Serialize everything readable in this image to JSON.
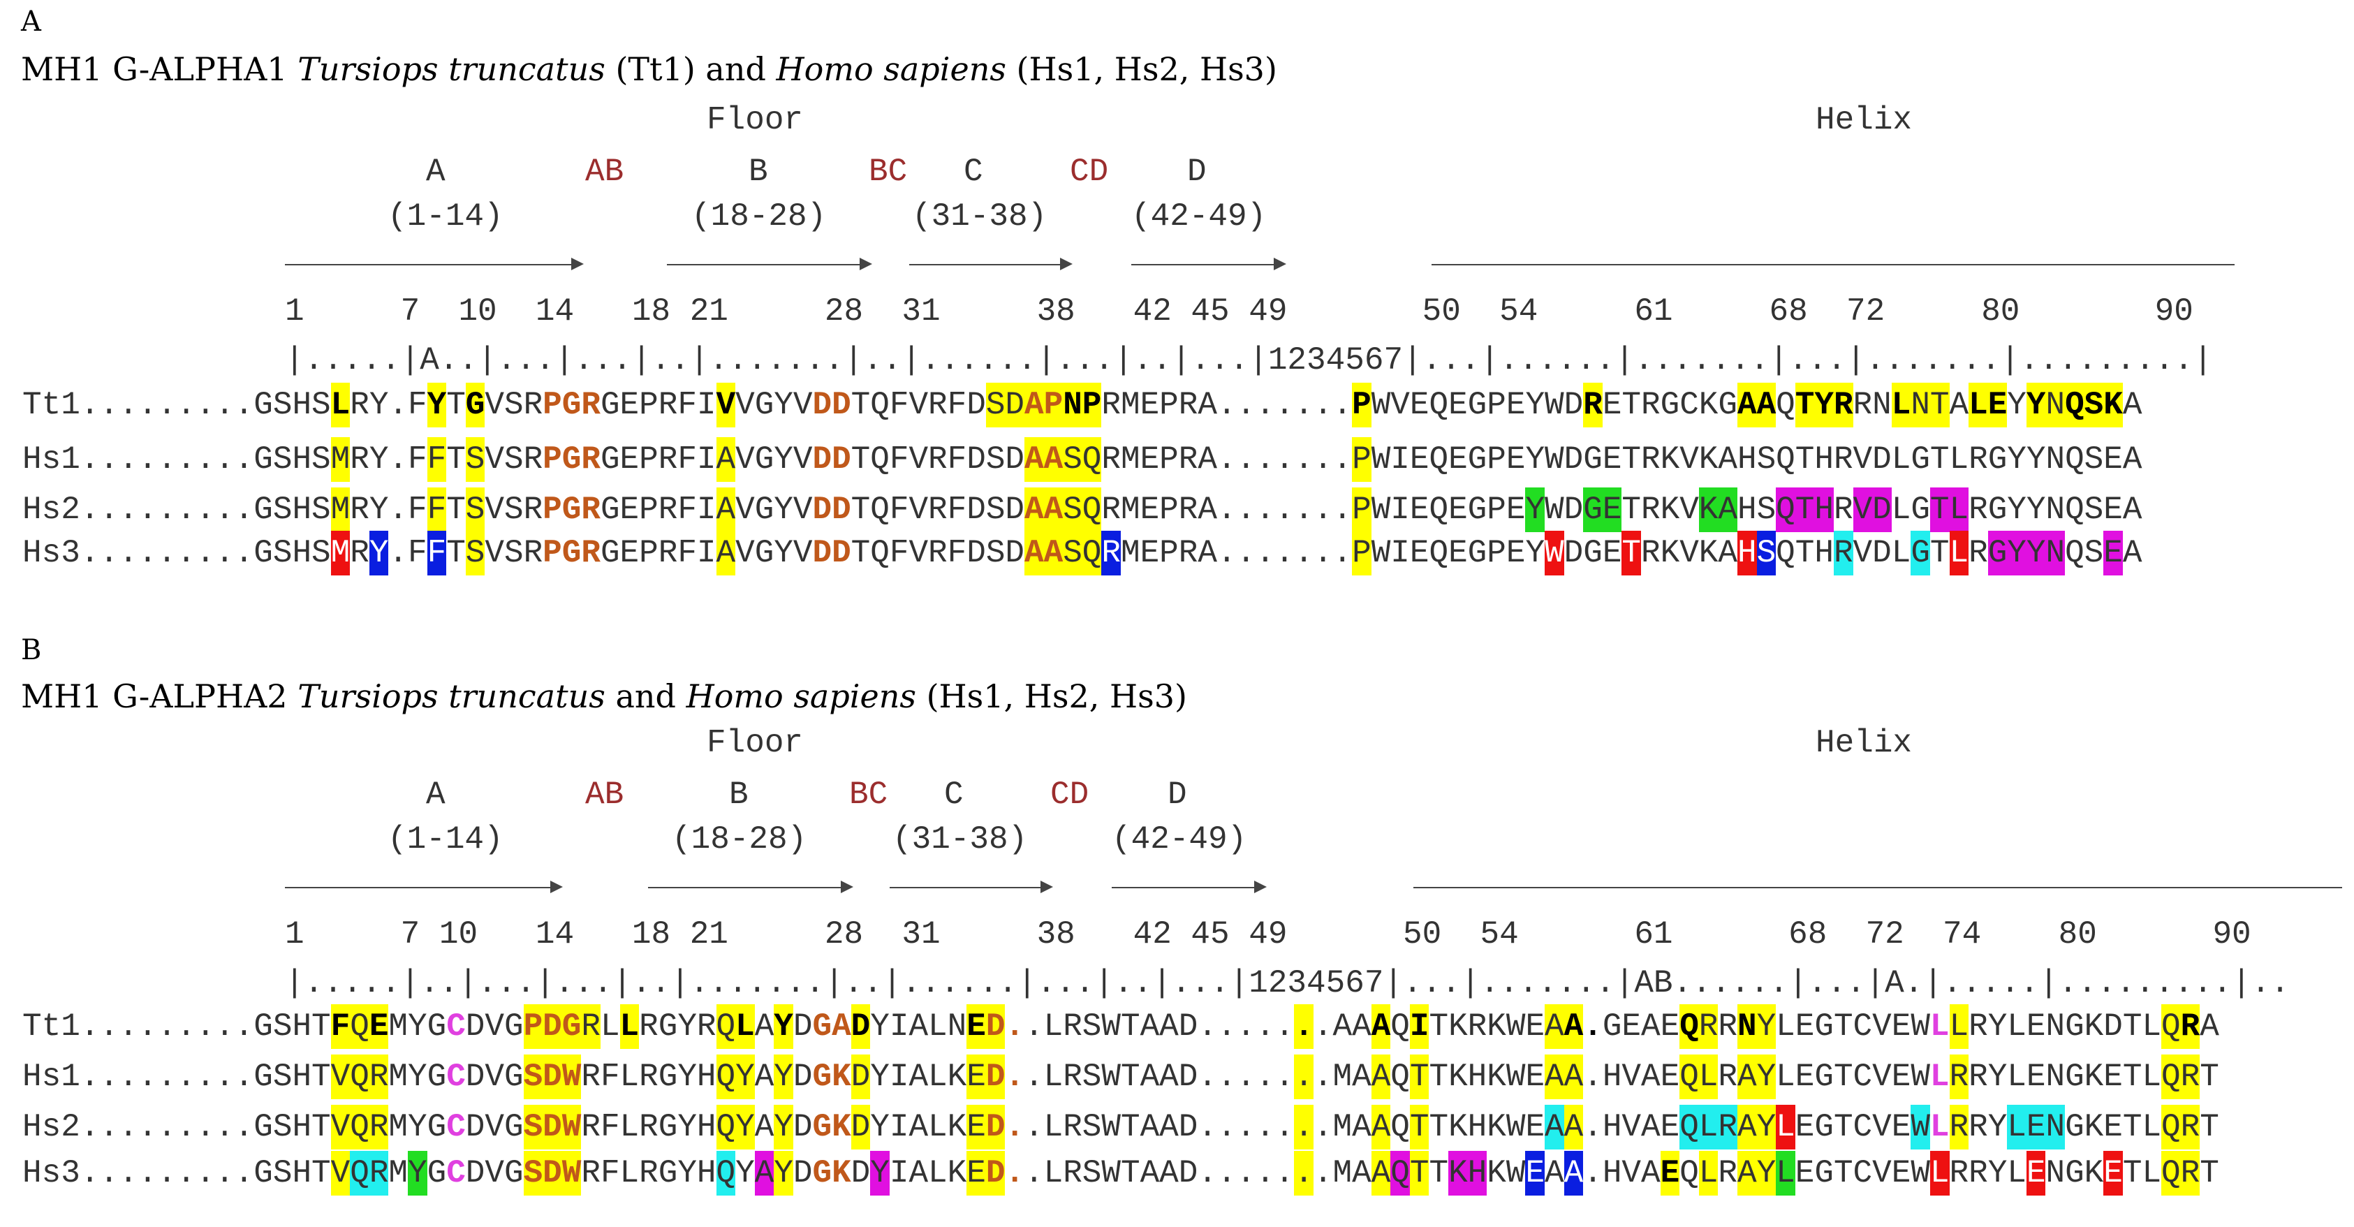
{
  "panelA": {
    "letter": "A",
    "title_pre": "MH1 G-ALPHA1 ",
    "title_species1": "Tursiops truncatus",
    "title_mid": " (Tt1) and ",
    "title_species2": "Homo sapiens",
    "title_post": " (Hs1, Hs2, Hs3)",
    "floor_label": "Floor",
    "helix_label": "Helix",
    "strands": [
      {
        "name": "A",
        "range": "(1-14)"
      },
      {
        "name": "B",
        "range": "(18-28)"
      },
      {
        "name": "C",
        "range": "(31-38)"
      },
      {
        "name": "D",
        "range": "(42-49)"
      }
    ],
    "loops": [
      "AB",
      "BC",
      "CD"
    ],
    "numbering": "1     7  10  14   18 21     28  31     38   42 45 49       50  54     61     68  72     80       90",
    "ruler": "|.....|A..|...|...|..|.......|..|......|...|..|...|1234567|...|......|.......|...|.......|.........|",
    "rows": [
      {
        "name": "Tt1",
        "prefix": "Tt1.........",
        "seq": "GSHSLRY.FYTGVSRPGRGEPRFIVVGYVDDTQFVRFDSDAPNPRMEPRA.......PWVEQEGPEYWDRETRGCKGAAQTYRRNLNTALEYYNQSKA"
      },
      {
        "name": "Hs1",
        "prefix": "Hs1.........",
        "seq": "GSHSMRY.FFTSVSRPGRGEPRFIAVGYVDDTQFVRFDSDAASQRMEPRA.......PWIEQEGPEYWDGETRKVKAHSQTHRVDLGTLRGYYNQSEA"
      },
      {
        "name": "Hs2",
        "prefix": "Hs2.........",
        "seq": "GSHSMRY.FFTSVSRPGRGEPRFIAVGYVDDTQFVRFDSDAASQRMEPRA.......PWIEQEGPEYWDGETRKVKAHSQTHRVDLGTLRGYYNQSEA"
      },
      {
        "name": "Hs3",
        "prefix": "Hs3.........",
        "seq": "GSHSMRY.FFTSVSRPGRGEPRFIAVGYVDDTQFVRFDSDAASQRMEPRA.......PWIEQEGPEYWDGETRKVKAHSQTHRVDLGTLRGYYNQSEA"
      }
    ]
  },
  "panelB": {
    "letter": "B",
    "title_pre": "MH1 G-ALPHA2 ",
    "title_species1": "Tursiops truncatus",
    "title_mid": " and ",
    "title_species2": "Homo sapiens",
    "title_post": " (Hs1, Hs2, Hs3)",
    "floor_label": "Floor",
    "helix_label": "Helix",
    "strands": [
      {
        "name": "A",
        "range": "(1-14)"
      },
      {
        "name": "B",
        "range": "(18-28)"
      },
      {
        "name": "C",
        "range": "(31-38)"
      },
      {
        "name": "D",
        "range": "(42-49)"
      }
    ],
    "loops": [
      "AB",
      "BC",
      "CD"
    ],
    "numbering": "1     7 10   14   18 21     28  31     38   42 45 49      50  54      61      68  72  74    80      90",
    "ruler": "|.....|..|...|...|..|.......|..|......|...|..|...|1234567|...|.......|AB......|...|A.|.....|.........|..",
    "rows": [
      {
        "name": "Tt1",
        "prefix": "Tt1.........",
        "seq": "GSHTFQEMYGCDVGPDGRLLRGYRQLAYDGADYIALNED..LRSWTAAD.......AAAQITKRKWEAA.GEAEQRRNYLEGTCVEWLLRYLENGKDTLQRA"
      },
      {
        "name": "Hs1",
        "prefix": "Hs1.........",
        "seq": "GSHTVQRMYGCDVGSDWRFLRGYHQYAYDGKDYIALKED..LRSWTAAD.......MAAQTTKHKWEAA.HVAEQLRAYLEGTCVEWLRRYLENGKETLQRT"
      },
      {
        "name": "Hs2",
        "prefix": "Hs2.........",
        "seq": "GSHTVQRMYGCDVGSDWRFLRGYHQYAYDGKDYIALKED..LRSWTAAD.......MAAQTTKHKWEAA.HVAEQLRAYLEGTCVEWLRRYLENGKETLQRT"
      },
      {
        "name": "Hs3",
        "prefix": "Hs3.........",
        "seq": "GSHTVQRMYGCDVGSDWRFLRGYHQYAYDGKDYIALKED..LRSWTAAD.......MAAQTTKHKWEAA.HVAEQLRAYLEGTCVEWLRRYLENGKETLQRT"
      }
    ]
  },
  "colors": {
    "yellow": "#ffff00",
    "red": "#ee1111",
    "blue": "#0a1ee0",
    "green": "#22dd22",
    "cyan": "#22eeee",
    "magenta": "#e010e0",
    "orange_text": "#c0581a",
    "pink_text": "#e040e0"
  },
  "highlights": {
    "A": {
      "Tt1": {
        "yellow": [
          4,
          9,
          11,
          24,
          38,
          39,
          40,
          41,
          42,
          43,
          57,
          69,
          77,
          78,
          80,
          81,
          82,
          85,
          86,
          87,
          89,
          90,
          92,
          93,
          94,
          95,
          96,
          103,
          104
        ],
        "bold": [
          4,
          9,
          11,
          24,
          42,
          43,
          57,
          69,
          77,
          78,
          80,
          81,
          82,
          85,
          89,
          90,
          92,
          94,
          95,
          96,
          103
        ],
        "orange": [
          15,
          16,
          17,
          29,
          30,
          40,
          41
        ]
      },
      "Hs1": {
        "yellow": [
          4,
          9,
          11,
          24,
          40,
          41,
          42,
          43,
          57,
          103,
          104
        ],
        "bold": [],
        "orange": [
          15,
          16,
          17,
          29,
          30,
          40,
          41
        ]
      },
      "Hs2": {
        "yellow": [
          4,
          9,
          11,
          24,
          40,
          41,
          42,
          43,
          57,
          103,
          104
        ],
        "bold": [],
        "orange": [
          15,
          16,
          17,
          29,
          30,
          40,
          41
        ],
        "green": [
          66,
          69,
          70,
          75,
          76
        ],
        "magenta": [
          79,
          80,
          81,
          83,
          84,
          87,
          88
        ],
        "cyan": []
      },
      "Hs3": {
        "yellow": [
          11,
          24,
          40,
          41,
          42,
          43,
          57,
          103,
          104
        ],
        "bold": [],
        "orange": [
          15,
          16,
          17,
          29,
          30,
          40,
          41
        ],
        "red": [
          4,
          67,
          71,
          77,
          88
        ],
        "blue": [
          6,
          9,
          44,
          78
        ],
        "cyan": [
          82,
          86
        ],
        "magenta": [
          90,
          91,
          92,
          93,
          96
        ]
      }
    },
    "B": {
      "Tt1": {
        "yellow": [
          4,
          5,
          6,
          14,
          15,
          16,
          17,
          19,
          24,
          25,
          27,
          31,
          37,
          38,
          54,
          58,
          60,
          67,
          68,
          74,
          75,
          77,
          78,
          88,
          99,
          100,
          107
        ],
        "bold": [
          4,
          6,
          14,
          16,
          19,
          25,
          27,
          31,
          37,
          54,
          58,
          60,
          68,
          69,
          74,
          77,
          100,
          107
        ],
        "orange": [
          14,
          15,
          16,
          29,
          30,
          38,
          39
        ],
        "pink": [
          10,
          87
        ]
      },
      "Hs1": {
        "yellow": [
          4,
          5,
          6,
          14,
          15,
          16,
          24,
          25,
          27,
          31,
          37,
          38,
          54,
          58,
          60,
          67,
          68,
          74,
          75,
          77,
          78,
          88,
          99,
          100,
          107
        ],
        "bold": [],
        "orange": [
          14,
          15,
          16,
          29,
          30,
          38,
          39
        ],
        "pink": [
          10,
          87
        ]
      },
      "Hs2": {
        "yellow": [
          4,
          5,
          6,
          14,
          15,
          16,
          24,
          25,
          27,
          31,
          37,
          38,
          54,
          58,
          60,
          67,
          68,
          74,
          75,
          77,
          78,
          88,
          99,
          100,
          107
        ],
        "bold": [],
        "orange": [
          14,
          15,
          16,
          29,
          30,
          38,
          39
        ],
        "pink": [
          10,
          87
        ],
        "cyan": [
          67,
          74,
          75,
          76,
          86,
          91,
          92,
          93
        ],
        "red": [
          79
        ]
      },
      "Hs3": {
        "yellow": [
          4,
          14,
          15,
          16,
          24,
          27,
          37,
          38,
          54,
          58,
          60,
          73,
          75,
          77,
          78,
          99,
          100,
          107
        ],
        "bold": [
          73
        ],
        "orange": [
          14,
          15,
          16,
          29,
          30,
          38,
          39
        ],
        "pink": [
          10
        ],
        "cyan": [
          5,
          6,
          24
        ],
        "green": [
          8,
          79
        ],
        "magenta": [
          26,
          32,
          59,
          62,
          63
        ],
        "blue": [
          66,
          68
        ],
        "red": [
          87,
          92,
          96
        ]
      }
    }
  }
}
